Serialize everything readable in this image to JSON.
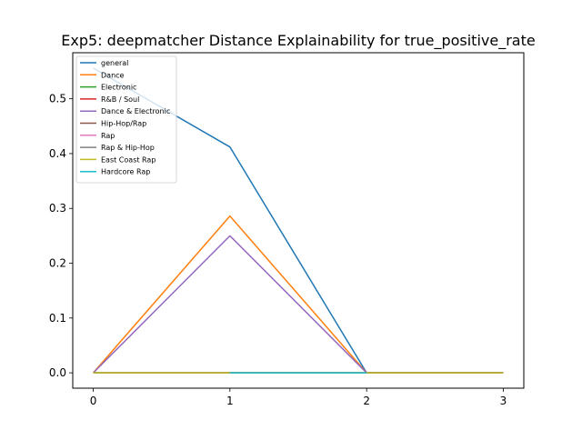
{
  "chart_data": {
    "type": "line",
    "title": "Exp5: deepmatcher Distance Explainability for true_positive_rate",
    "xlabel": "",
    "ylabel": "",
    "x": [
      0,
      1,
      2,
      3
    ],
    "xlim": [
      -0.15,
      3.15
    ],
    "ylim": [
      -0.028,
      0.584
    ],
    "xticks": [
      "0",
      "1",
      "2",
      "3"
    ],
    "yticks": [
      "0.0",
      "0.1",
      "0.2",
      "0.3",
      "0.4",
      "0.5"
    ],
    "ytick_values": [
      0.0,
      0.1,
      0.2,
      0.3,
      0.4,
      0.5
    ],
    "grid": false,
    "legend_position": "upper-left",
    "series": [
      {
        "name": "general",
        "color": "#1f77b4",
        "values": [
          0.556,
          0.412,
          0.0,
          0.0
        ]
      },
      {
        "name": "Dance",
        "color": "#ff7f0e",
        "values": [
          0.0,
          0.286,
          0.0,
          0.0
        ]
      },
      {
        "name": "Electronic",
        "color": "#2ca02c",
        "values": [
          0.0,
          0.0,
          0.0,
          0.0
        ]
      },
      {
        "name": "R&B / Soul",
        "color": "#d62728",
        "values": [
          0.0,
          0.0,
          0.0,
          0.0
        ]
      },
      {
        "name": "Dance & Electronic",
        "color": "#9467bd",
        "values": [
          0.0,
          0.25,
          0.0,
          0.0
        ]
      },
      {
        "name": "Hip-Hop/Rap",
        "color": "#8c564b",
        "values": [
          0.0,
          0.0,
          0.0,
          0.0
        ]
      },
      {
        "name": "Rap",
        "color": "#e377c2",
        "values": [
          0.0,
          0.0,
          0.0,
          0.0
        ]
      },
      {
        "name": "Rap & Hip-Hop",
        "color": "#7f7f7f",
        "values": [
          0.0,
          0.0,
          0.0,
          0.0
        ]
      },
      {
        "name": "East Coast Rap",
        "color": "#bcbd22",
        "values": [
          0.0,
          0.0,
          0.0,
          0.0
        ]
      },
      {
        "name": "Hardcore Rap",
        "color": "#17becf",
        "values": [
          null,
          0.0,
          0.0,
          null
        ]
      }
    ]
  }
}
